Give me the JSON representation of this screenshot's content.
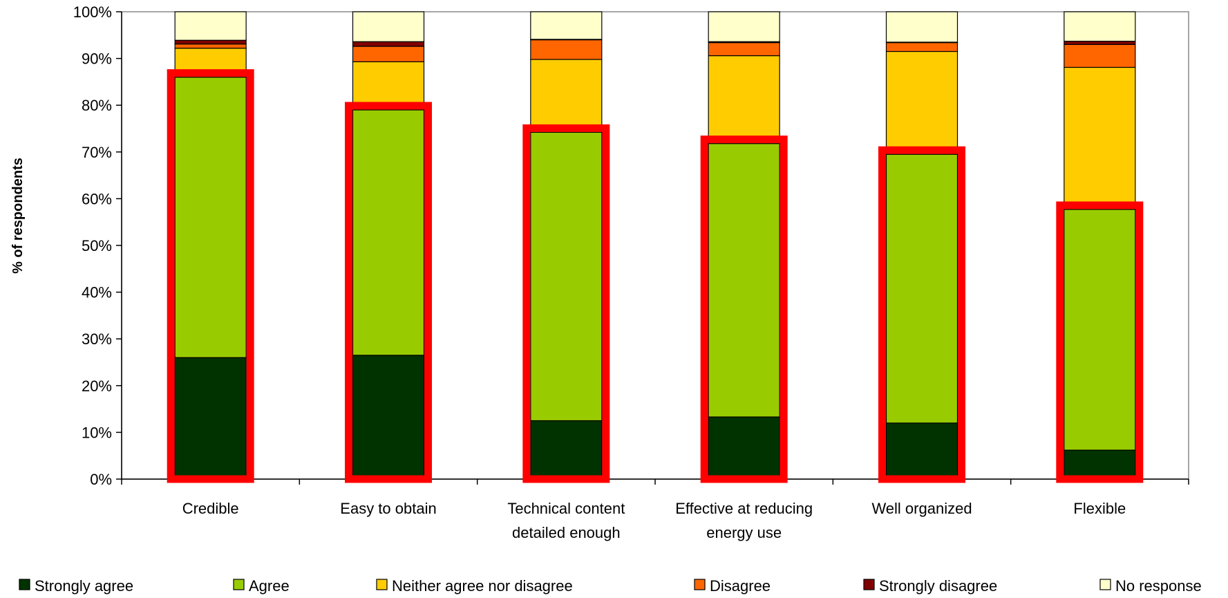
{
  "chart_data": {
    "type": "bar",
    "stacked": true,
    "ylabel": "% of respondents",
    "xlabel": "",
    "ylim": [
      0,
      100
    ],
    "y_ticks": [
      "0%",
      "10%",
      "20%",
      "30%",
      "40%",
      "50%",
      "60%",
      "70%",
      "80%",
      "90%",
      "100%"
    ],
    "categories": [
      [
        "Credible"
      ],
      [
        "Easy to obtain"
      ],
      [
        "Technical content",
        "detailed enough"
      ],
      [
        "Effective at reducing",
        "energy use"
      ],
      [
        "Well organized"
      ],
      [
        "Flexible"
      ]
    ],
    "series": [
      {
        "name": "Strongly agree",
        "color": "#003300",
        "values": [
          26,
          26.5,
          12.5,
          13.3,
          12,
          6.2
        ]
      },
      {
        "name": "Agree",
        "color": "#99cc00",
        "values": [
          60,
          52.5,
          61.7,
          58.5,
          57.5,
          51.5
        ]
      },
      {
        "name": "Neither agree nor disagree",
        "color": "#ffcc00",
        "values": [
          6.2,
          10.3,
          15.6,
          18.8,
          22,
          30.4
        ]
      },
      {
        "name": "Disagree",
        "color": "#ff6600",
        "values": [
          0.9,
          3.3,
          4.2,
          2.8,
          1.9,
          4.9
        ]
      },
      {
        "name": "Strongly disagree",
        "color": "#800000",
        "values": [
          0.8,
          1.0,
          0.1,
          0.2,
          0.1,
          0.7
        ]
      },
      {
        "name": "No response",
        "color": "#ffffcc",
        "values": [
          6.1,
          6.4,
          5.9,
          6.4,
          6.5,
          6.3
        ]
      }
    ],
    "highlight": {
      "color": "#ff0000",
      "series": [
        "Strongly agree",
        "Agree"
      ]
    },
    "grid": false,
    "legend_position": "bottom"
  }
}
